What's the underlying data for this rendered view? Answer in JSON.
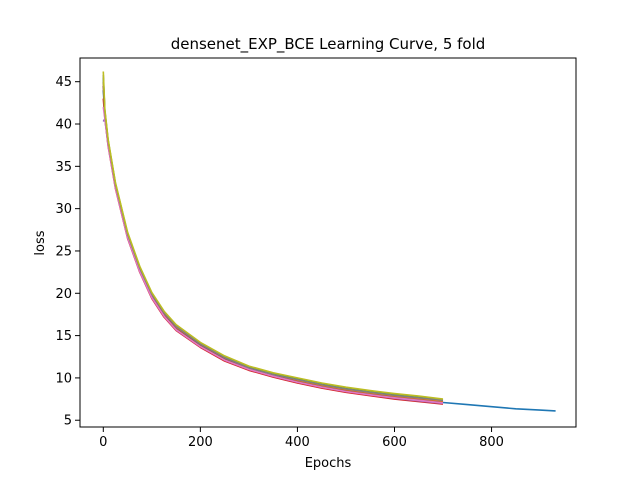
{
  "chart_data": {
    "type": "line",
    "title": "densenet_EXP_BCE Learning Curve, 5 fold",
    "xlabel": "Epochs",
    "ylabel": "loss",
    "xlim": [
      -48,
      974
    ],
    "ylim": [
      4.2,
      47.8
    ],
    "xticks": [
      0,
      200,
      400,
      600,
      800
    ],
    "yticks": [
      5,
      10,
      15,
      20,
      25,
      30,
      35,
      40,
      45
    ],
    "grid": false,
    "legend": "none",
    "series": [
      {
        "color": "#1f77b4",
        "x": [
          0,
          3,
          10,
          25,
          50,
          75,
          100,
          125,
          150,
          200,
          250,
          300,
          350,
          400,
          450,
          500,
          550,
          600,
          650,
          700,
          750,
          800,
          850,
          900,
          932
        ],
        "y": [
          44.0,
          41.0,
          37.8,
          32.7,
          26.8,
          22.8,
          19.7,
          17.5,
          15.9,
          13.8,
          12.2,
          11.1,
          10.3,
          9.6,
          9.0,
          8.5,
          8.1,
          7.7,
          7.4,
          7.1,
          6.85,
          6.6,
          6.35,
          6.2,
          6.1
        ]
      },
      {
        "color": "#ff7f0e",
        "x": [
          0,
          3,
          10,
          25,
          50,
          75,
          100,
          125,
          150,
          200,
          250,
          300,
          350,
          400,
          450,
          500,
          550,
          600,
          650,
          700
        ],
        "y": [
          45.0,
          41.4,
          37.9,
          32.8,
          26.9,
          22.9,
          19.8,
          17.6,
          16.0,
          13.9,
          12.3,
          11.15,
          10.35,
          9.7,
          9.1,
          8.6,
          8.2,
          7.85,
          7.55,
          7.25
        ]
      },
      {
        "color": "#2ca02c",
        "x": [
          0,
          3,
          10,
          25,
          50,
          75,
          100,
          125,
          150,
          200,
          250,
          300,
          350,
          400,
          450,
          500,
          550,
          600,
          650,
          700
        ],
        "y": [
          45.5,
          41.6,
          38.1,
          33.0,
          27.1,
          23.1,
          20.0,
          17.8,
          16.2,
          14.1,
          12.5,
          11.3,
          10.5,
          9.85,
          9.25,
          8.75,
          8.35,
          8.0,
          7.7,
          7.4
        ]
      },
      {
        "color": "#d62728",
        "x": [
          0,
          3,
          10,
          25,
          50,
          75,
          100,
          125,
          150,
          200,
          250,
          300,
          350,
          400,
          450,
          500,
          550,
          600,
          650,
          700
        ],
        "y": [
          43.0,
          40.8,
          37.4,
          32.4,
          26.5,
          22.5,
          19.4,
          17.2,
          15.6,
          13.6,
          12.0,
          10.9,
          10.1,
          9.4,
          8.8,
          8.3,
          7.9,
          7.5,
          7.2,
          6.9
        ]
      },
      {
        "color": "#9467bd",
        "x": [
          0,
          3,
          10,
          25,
          50,
          75,
          100,
          125,
          150,
          200,
          250,
          300,
          350,
          400,
          450,
          500,
          550,
          600,
          650,
          700
        ],
        "y": [
          40.3,
          40.6,
          37.6,
          32.6,
          26.6,
          22.6,
          19.5,
          17.3,
          15.7,
          13.7,
          12.1,
          11.0,
          10.2,
          9.5,
          8.9,
          8.4,
          8.0,
          7.6,
          7.3,
          7.0
        ]
      },
      {
        "color": "#8c564b",
        "x": [
          0,
          3,
          10,
          25,
          50,
          75,
          100,
          125,
          150,
          200,
          250,
          300,
          350,
          400,
          450,
          500,
          550,
          600,
          650,
          700
        ],
        "y": [
          44.5,
          41.2,
          37.7,
          32.7,
          26.7,
          22.7,
          19.6,
          17.4,
          15.8,
          13.8,
          12.2,
          11.05,
          10.25,
          9.55,
          8.95,
          8.45,
          8.05,
          7.7,
          7.4,
          7.1
        ]
      },
      {
        "color": "#e377c2",
        "x": [
          0,
          3,
          10,
          25,
          50,
          75,
          100,
          125,
          150,
          200,
          250,
          300,
          350,
          400,
          450,
          500,
          550,
          600,
          650,
          700
        ],
        "y": [
          42.0,
          40.7,
          37.5,
          32.5,
          26.6,
          22.6,
          19.5,
          17.3,
          15.7,
          13.7,
          12.1,
          11.0,
          10.2,
          9.5,
          8.9,
          8.4,
          8.0,
          7.65,
          7.35,
          7.05
        ]
      },
      {
        "color": "#7f7f7f",
        "x": [
          0,
          3,
          10,
          25,
          50,
          75,
          100,
          125,
          150,
          200,
          250,
          300,
          350,
          400,
          450,
          500,
          550,
          600,
          650,
          700
        ],
        "y": [
          45.8,
          41.5,
          38.0,
          32.9,
          27.0,
          23.0,
          19.9,
          17.7,
          16.1,
          14.0,
          12.4,
          11.2,
          10.4,
          9.8,
          9.2,
          8.7,
          8.3,
          7.95,
          7.65,
          7.35
        ]
      },
      {
        "color": "#bcbd22",
        "x": [
          0,
          3,
          10,
          25,
          50,
          75,
          100,
          125,
          150,
          200,
          250,
          300,
          350,
          400,
          450,
          500,
          550,
          600,
          650,
          700
        ],
        "y": [
          46.2,
          41.8,
          38.2,
          33.1,
          27.2,
          23.2,
          20.1,
          17.9,
          16.3,
          14.2,
          12.6,
          11.4,
          10.6,
          10.0,
          9.4,
          8.9,
          8.5,
          8.15,
          7.85,
          7.5
        ]
      }
    ]
  }
}
